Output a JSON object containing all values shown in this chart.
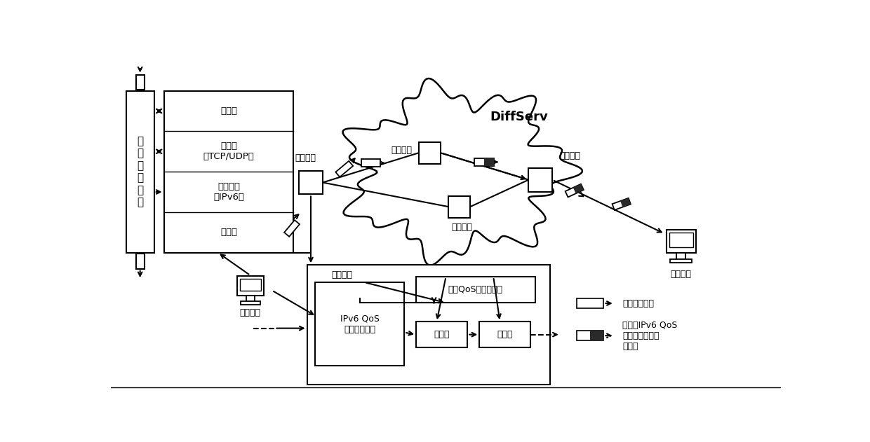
{
  "bg_color": "#ffffff",
  "layers_bottom_to_top": [
    "物理层",
    "互联网层\n（IPv6）",
    "传输层\n（TCP/UDP）",
    "应用层"
  ],
  "left_box_label": "业\n务\n感\n知\n部\n件",
  "edge_node1_label": "边缘节点",
  "diffserv_label": "DiffServ",
  "core_node1_label": "核心节点",
  "core_node2_label": "核心节点",
  "edge_node2_label": "边缘节点",
  "terminal_label1": "业务终端",
  "terminal_label2": "业务终端",
  "bottom_box_label": "边缘节点",
  "ipv6_box_label": "IPv6 QoS\n扩展头检测器",
  "qos_box_label": "业务QoS自配置部件",
  "classifier_label": "分类器",
  "marker_label": "标记器",
  "legend_text1": "业务数据报文",
  "legend_text2": "承载有IPv6 QoS\n扩展头的业务数\n据报文",
  "text_color": "#000000",
  "line_color": "#000000",
  "box_fill": "#ffffff"
}
